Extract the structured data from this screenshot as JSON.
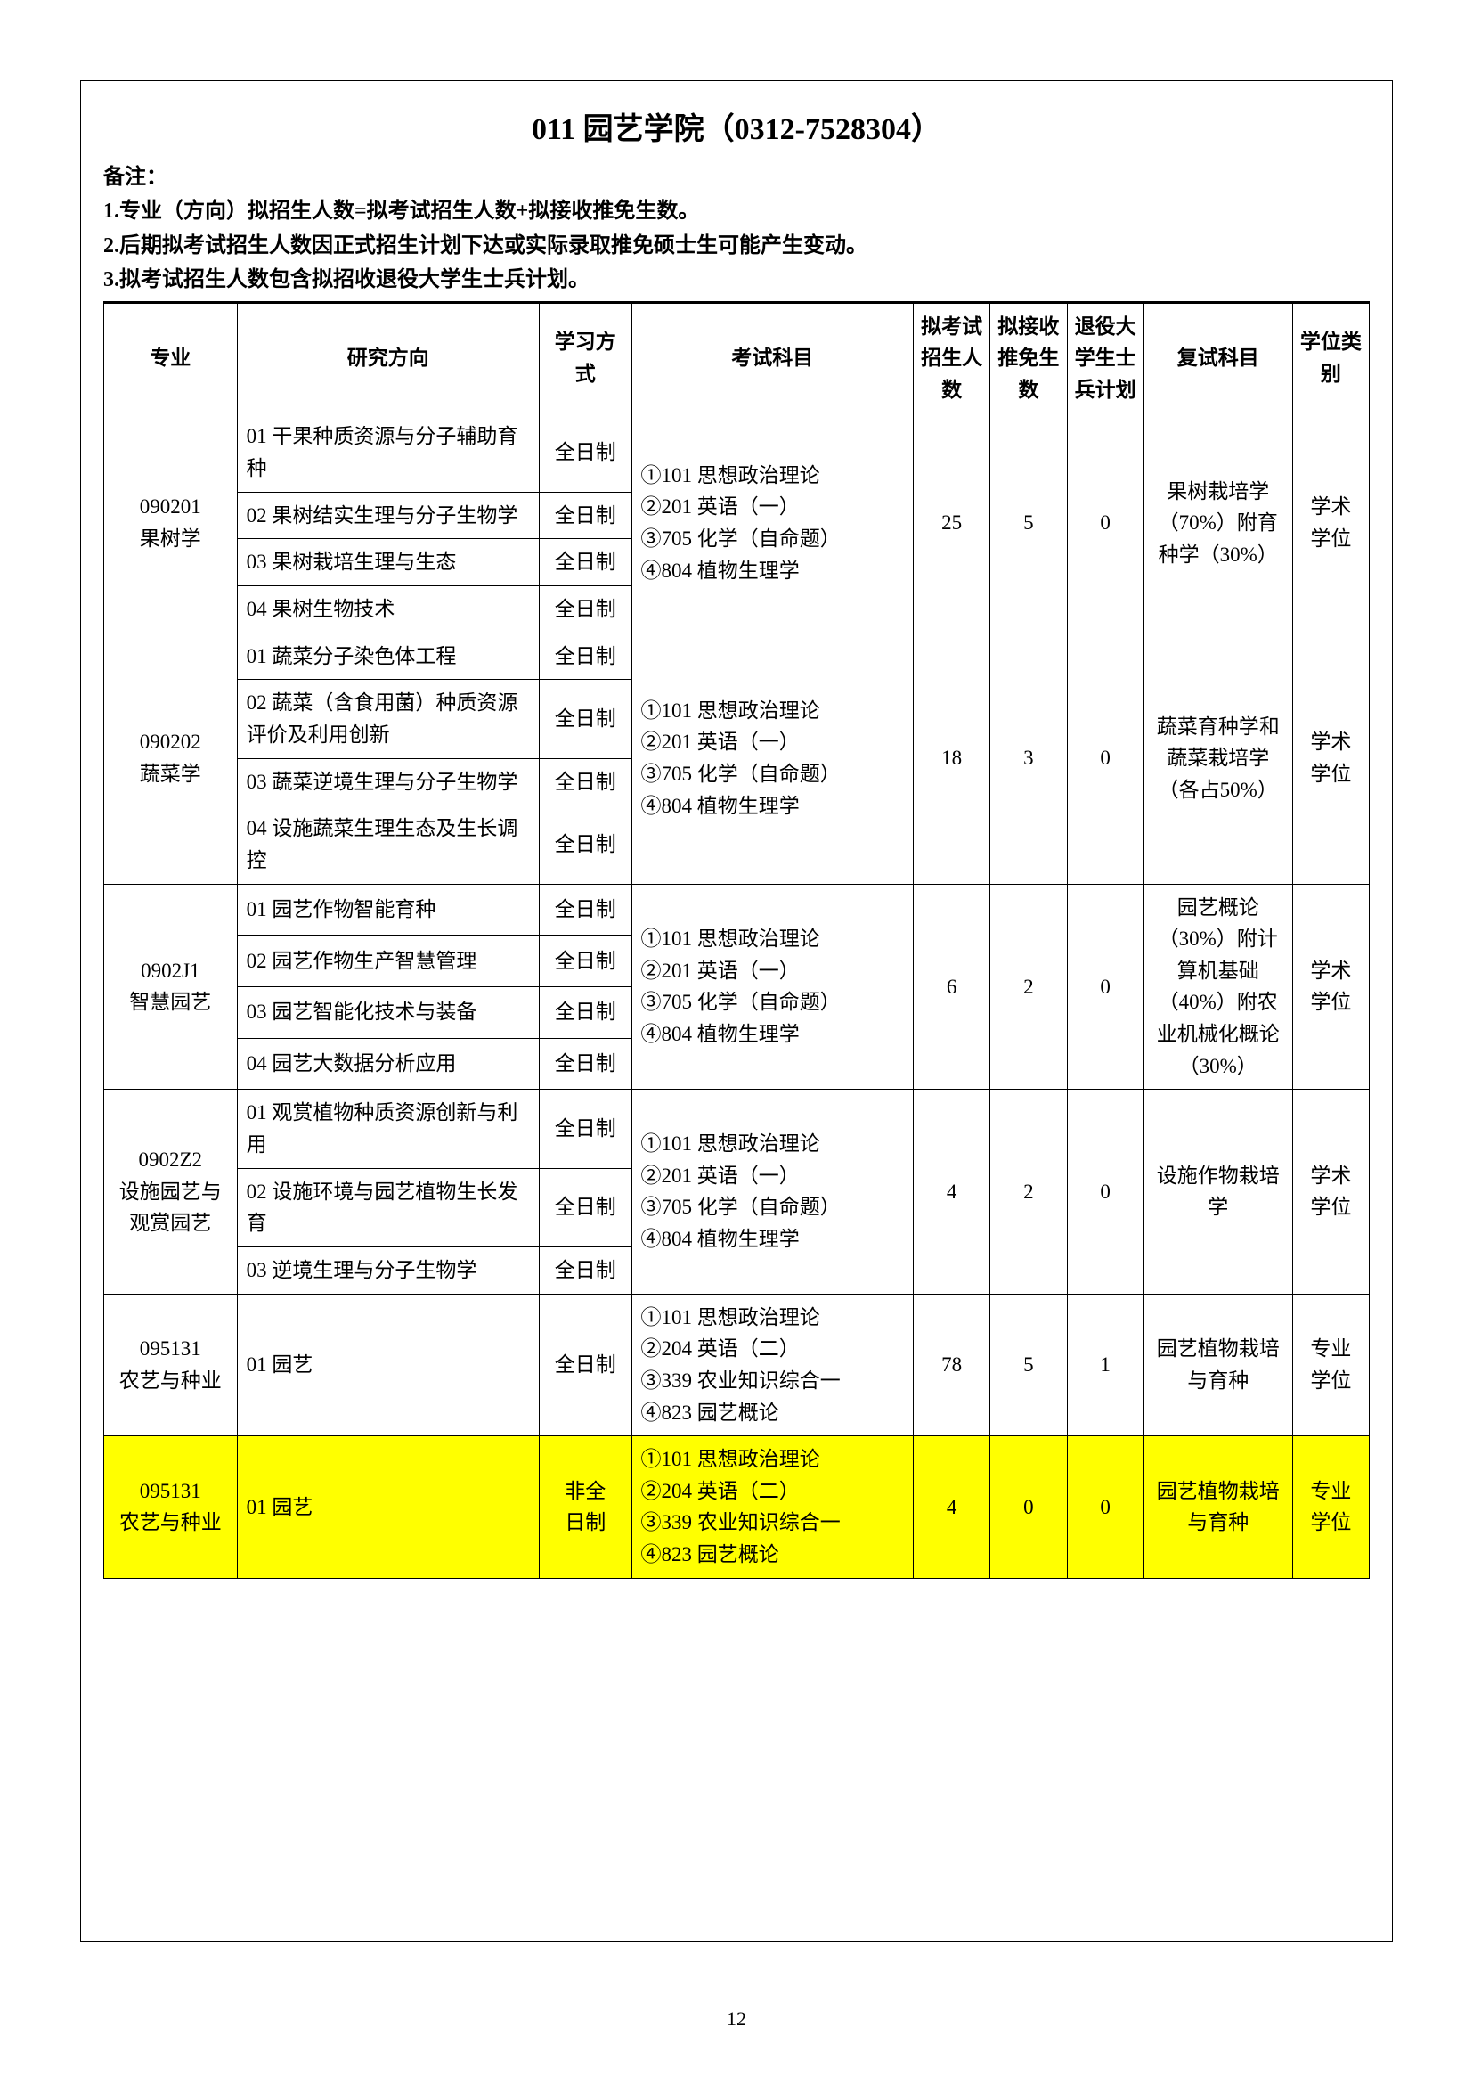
{
  "title": "011 园艺学院（0312-7528304）",
  "notes_label": "备注：",
  "notes": [
    "1.专业（方向）拟招生人数=拟考试招生人数+拟接收推免生数。",
    "2.后期拟考试招生人数因正式招生计划下达或实际录取推免硕士生可能产生变动。",
    "3.拟考试招生人数包含拟招收退役大学生士兵计划。"
  ],
  "headers": {
    "major": "专业",
    "direction": "研究方向",
    "mode": "学习方式",
    "exam": "考试科目",
    "exam_num": "拟考试招生人数",
    "rec_num": "拟接收推免生数",
    "vet_num": "退役大学生士兵计划",
    "retest": "复试科目",
    "degree": "学位类别"
  },
  "majors": [
    {
      "code_name": "090201\n果树学",
      "directions": [
        {
          "dir": "01 干果种质资源与分子辅助育种",
          "mode": "全日制"
        },
        {
          "dir": "02 果树结实生理与分子生物学",
          "mode": "全日制"
        },
        {
          "dir": "03 果树栽培生理与生态",
          "mode": "全日制"
        },
        {
          "dir": "04 果树生物技术",
          "mode": "全日制"
        }
      ],
      "exam": "①101 思想政治理论\n②201 英语（一）\n③705 化学（自命题）\n④804 植物生理学",
      "exam_num": "25",
      "rec_num": "5",
      "vet_num": "0",
      "retest": "果树栽培学（70%）附育种学（30%）",
      "degree": "学术学位"
    },
    {
      "code_name": "090202\n蔬菜学",
      "directions": [
        {
          "dir": "01 蔬菜分子染色体工程",
          "mode": "全日制"
        },
        {
          "dir": "02 蔬菜（含食用菌）种质资源评价及利用创新",
          "mode": "全日制"
        },
        {
          "dir": "03 蔬菜逆境生理与分子生物学",
          "mode": "全日制"
        },
        {
          "dir": "04 设施蔬菜生理生态及生长调控",
          "mode": "全日制"
        }
      ],
      "exam": "①101 思想政治理论\n②201 英语（一）\n③705 化学（自命题）\n④804 植物生理学",
      "exam_num": "18",
      "rec_num": "3",
      "vet_num": "0",
      "retest": "蔬菜育种学和蔬菜栽培学（各占50%）",
      "degree": "学术学位"
    },
    {
      "code_name": "0902J1\n智慧园艺",
      "directions": [
        {
          "dir": "01 园艺作物智能育种",
          "mode": "全日制"
        },
        {
          "dir": "02 园艺作物生产智慧管理",
          "mode": "全日制"
        },
        {
          "dir": "03 园艺智能化技术与装备",
          "mode": "全日制"
        },
        {
          "dir": "04 园艺大数据分析应用",
          "mode": "全日制"
        }
      ],
      "exam": "①101 思想政治理论\n②201 英语（一）\n③705 化学（自命题）\n④804 植物生理学",
      "exam_num": "6",
      "rec_num": "2",
      "vet_num": "0",
      "retest": "园艺概论（30%）附计算机基础（40%）附农业机械化概论（30%）",
      "degree": "学术学位"
    },
    {
      "code_name": "0902Z2\n设施园艺与观赏园艺",
      "directions": [
        {
          "dir": "01 观赏植物种质资源创新与利用",
          "mode": "全日制"
        },
        {
          "dir": "02 设施环境与园艺植物生长发育",
          "mode": "全日制"
        },
        {
          "dir": "03 逆境生理与分子生物学",
          "mode": "全日制"
        }
      ],
      "exam": "①101 思想政治理论\n②201 英语（一）\n③705 化学（自命题）\n④804 植物生理学",
      "exam_num": "4",
      "rec_num": "2",
      "vet_num": "0",
      "retest": "设施作物栽培学",
      "degree": "学术学位"
    },
    {
      "code_name": "095131\n农艺与种业",
      "directions": [
        {
          "dir": "01 园艺",
          "mode": "全日制"
        }
      ],
      "exam": "①101 思想政治理论\n②204 英语（二）\n③339 农业知识综合一\n④823 园艺概论",
      "exam_num": "78",
      "rec_num": "5",
      "vet_num": "1",
      "retest": "园艺植物栽培与育种",
      "degree": "专业学位"
    },
    {
      "code_name": "095131\n农艺与种业",
      "highlight": true,
      "directions": [
        {
          "dir": "01 园艺",
          "mode": "非全日制"
        }
      ],
      "exam": "①101 思想政治理论\n②204 英语（二）\n③339 农业知识综合一\n④823 园艺概论",
      "exam_num": "4",
      "rec_num": "0",
      "vet_num": "0",
      "retest": "园艺植物栽培与育种",
      "degree": "专业学位"
    }
  ],
  "page_number": "12"
}
